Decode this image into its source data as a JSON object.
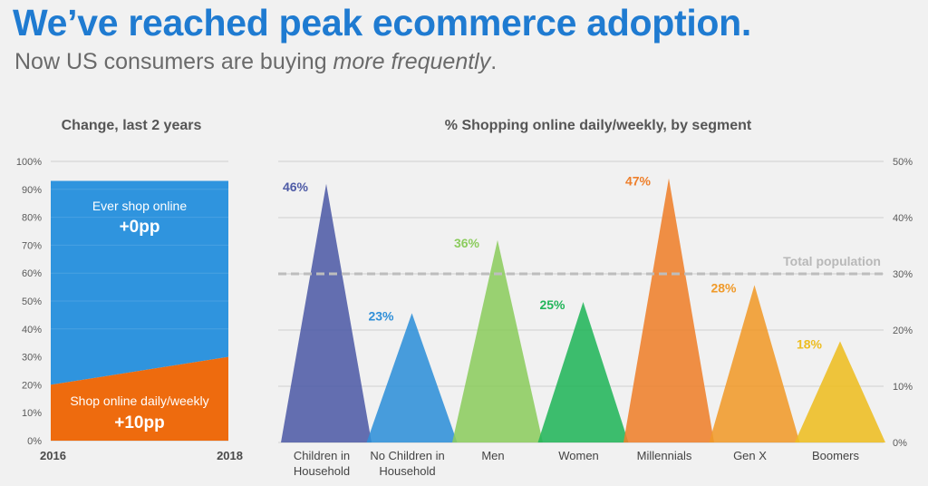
{
  "header": {
    "title": "We’ve reached peak ecommerce adoption.",
    "subtitle_prefix": "Now US consumers are buying ",
    "subtitle_emphasis": "more frequently",
    "subtitle_suffix": "."
  },
  "colors": {
    "ever_shop": "#2f94de",
    "daily_weekly": "#ee6b0e",
    "grid": "#cfcfcf",
    "axis_text": "#5a5a5a",
    "reference_line": "#bdbdbd"
  },
  "chart_data": [
    {
      "type": "area",
      "title": "Change, last 2 years",
      "x": [
        "2016",
        "2018"
      ],
      "ylim": [
        0,
        100
      ],
      "yticks": [
        "0%",
        "10%",
        "20%",
        "30%",
        "40%",
        "50%",
        "60%",
        "70%",
        "80%",
        "90%",
        "100%"
      ],
      "series": [
        {
          "name": "Shop online daily/weekly",
          "values": [
            20,
            30
          ],
          "change_label": "+10pp",
          "color": "#ee6b0e"
        },
        {
          "name": "Ever shop online",
          "values": [
            93,
            93
          ],
          "change_label": "+0pp",
          "color": "#2f94de"
        }
      ]
    },
    {
      "type": "bar",
      "title": "% Shopping online daily/weekly, by segment",
      "ylim": [
        0,
        50
      ],
      "yticks": [
        "0%",
        "10%",
        "20%",
        "30%",
        "40%",
        "50%"
      ],
      "categories": [
        "Children in Household",
        "No Children in Household",
        "Men",
        "Women",
        "Millennials",
        "Gen X",
        "Boomers"
      ],
      "category_lines": [
        [
          "Children in",
          "Household"
        ],
        [
          "No Children in",
          "Household"
        ],
        [
          "Men"
        ],
        [
          "Women"
        ],
        [
          "Millennials"
        ],
        [
          "Gen X"
        ],
        [
          "Boomers"
        ]
      ],
      "values": [
        46,
        23,
        36,
        25,
        47,
        28,
        18
      ],
      "data_labels": [
        "46%",
        "23%",
        "36%",
        "25%",
        "47%",
        "28%",
        "18%"
      ],
      "colors": [
        "#4e5ba6",
        "#2f8fd8",
        "#8ccc5e",
        "#22b55a",
        "#ee7f2b",
        "#f09a2a",
        "#edbd21"
      ],
      "reference_line": {
        "value": 30,
        "label": "Total population"
      }
    }
  ]
}
